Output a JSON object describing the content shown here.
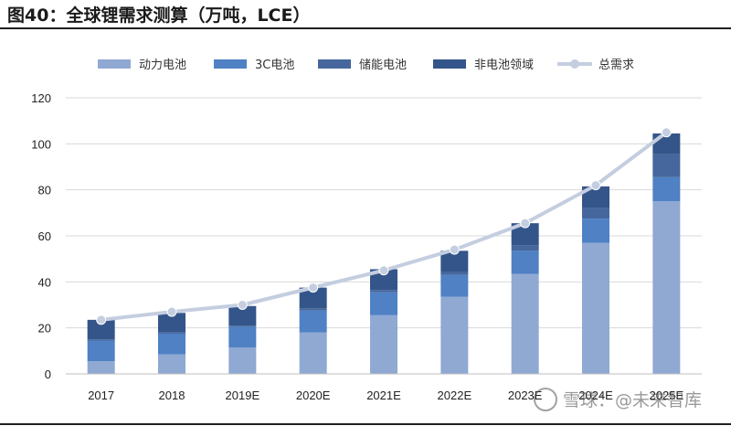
{
  "figure": {
    "title": "图40：全球锂需求测算（万吨，LCE）",
    "watermark": "雪球：@未来智库"
  },
  "colors": {
    "power": "#8fa9d3",
    "c3": "#4f81c4",
    "storage": "#45679d",
    "nonbattery": "#34558a",
    "total_line": "#c4cee0",
    "grid": "#d9d9d9"
  },
  "chart_data": {
    "type": "bar",
    "stacked": true,
    "categories": [
      "2017",
      "2018",
      "2019E",
      "2020E",
      "2021E",
      "2022E",
      "2023E",
      "2024E",
      "2025E"
    ],
    "series": [
      {
        "name": "动力电池",
        "values": [
          5.5,
          8.5,
          11.5,
          18.0,
          25.5,
          33.5,
          43.5,
          57.0,
          75.0
        ]
      },
      {
        "name": "3C电池",
        "values": [
          9.0,
          9.0,
          9.0,
          9.5,
          10.0,
          9.5,
          10.0,
          10.5,
          10.5
        ]
      },
      {
        "name": "储能电池",
        "values": [
          0.5,
          0.5,
          0.5,
          1.0,
          1.0,
          1.5,
          2.5,
          4.5,
          10.0
        ]
      },
      {
        "name": "非电池领域",
        "values": [
          8.5,
          8.5,
          8.5,
          9.0,
          9.0,
          9.0,
          9.5,
          9.5,
          9.0
        ]
      }
    ],
    "line": {
      "name": "总需求",
      "values": [
        23.5,
        27.0,
        30.0,
        37.5,
        45.0,
        54.0,
        65.5,
        82.0,
        105.0
      ]
    },
    "ylim": [
      0,
      120
    ],
    "yticks": [
      0,
      20,
      40,
      60,
      80,
      100,
      120
    ],
    "grid": true,
    "legend_position": "top"
  }
}
